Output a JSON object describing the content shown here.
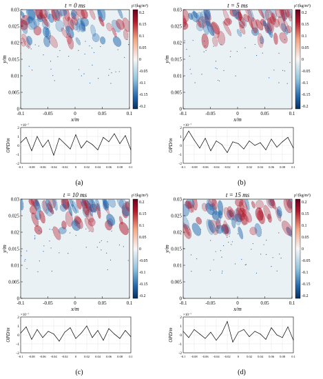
{
  "figure": {
    "panels": [
      {
        "id": "a",
        "letter_label": "(a)",
        "title": "t = 0 ms"
      },
      {
        "id": "b",
        "letter_label": "(b)",
        "title": "t = 5 ms"
      },
      {
        "id": "c",
        "letter_label": "(c)",
        "title": "t = 10 ms"
      },
      {
        "id": "d",
        "letter_label": "(d)",
        "title": "t = 15 ms"
      }
    ],
    "colorbar_label": "ρ'/(kg/m³)",
    "colorbar_ticks": [
      "0.2",
      "0.15",
      "0.1",
      "0.05",
      "0",
      "-0.05",
      "-0.1",
      "-0.15",
      "-0.2"
    ],
    "contour_xlabel": "x/m",
    "contour_ylabel": "y/m",
    "contour_xticks": [
      "-0.1",
      "-0.05",
      "0",
      "0.05",
      "0.1"
    ],
    "contour_yticks": [
      "0.03",
      "0.025",
      "0.02",
      "0.015",
      "0.01",
      "0.005",
      "0"
    ],
    "opd_ylabel": "OPD/m",
    "opd_exponent": "×10⁻⁷",
    "opd_yticks": [
      "2",
      "1",
      "0",
      "-1",
      "-2"
    ],
    "opd_xticks": [
      "-0.1",
      "-0.08",
      "-0.06",
      "-0.04",
      "-0.02",
      "0",
      "0.02",
      "0.04",
      "0.06",
      "0.08",
      "0.1"
    ]
  },
  "colors": {
    "positive": "#b2182b",
    "negative": "#2166ac",
    "background_field": "#e9f1f4",
    "curve": "#000000"
  },
  "chart_data": [
    {
      "type": "line",
      "panel": "a",
      "xlabel": "x/m",
      "ylabel": "OPD/m",
      "xlim": [
        -0.1,
        0.1
      ],
      "ylim": [
        -2,
        2
      ],
      "x": [
        -0.1,
        -0.09,
        -0.08,
        -0.07,
        -0.06,
        -0.05,
        -0.04,
        -0.03,
        -0.02,
        -0.01,
        0,
        0.01,
        0.02,
        0.03,
        0.04,
        0.05,
        0.06,
        0.07,
        0.08,
        0.09,
        0.1
      ],
      "values": [
        0.3,
        0.9,
        -0.6,
        1.0,
        -0.2,
        0.6,
        -1.1,
        0.8,
        0.2,
        -0.4,
        1.2,
        -0.3,
        0.5,
        0.1,
        -0.5,
        0.9,
        0.4,
        1.3,
        0.2,
        1.1,
        -0.5
      ]
    },
    {
      "type": "line",
      "panel": "b",
      "xlabel": "x/m",
      "ylabel": "OPD/m",
      "xlim": [
        -0.1,
        0.1
      ],
      "ylim": [
        -2,
        2
      ],
      "x": [
        -0.1,
        -0.09,
        -0.08,
        -0.07,
        -0.06,
        -0.05,
        -0.04,
        -0.03,
        -0.02,
        -0.01,
        0,
        0.01,
        0.02,
        0.03,
        0.04,
        0.05,
        0.06,
        0.07,
        0.08,
        0.09,
        0.1
      ],
      "values": [
        0.5,
        1.6,
        0.6,
        -0.3,
        0.8,
        -0.6,
        0.5,
        0.1,
        -0.8,
        0.4,
        0.2,
        -0.4,
        0.5,
        0.0,
        0.3,
        -0.5,
        0.7,
        -0.2,
        0.4,
        0.9,
        -0.3
      ]
    },
    {
      "type": "line",
      "panel": "c",
      "xlabel": "x/m",
      "ylabel": "OPD/m",
      "xlim": [
        -0.1,
        0.1
      ],
      "ylim": [
        -2,
        2
      ],
      "x": [
        -0.1,
        -0.09,
        -0.08,
        -0.07,
        -0.06,
        -0.05,
        -0.04,
        -0.03,
        -0.02,
        -0.01,
        0,
        0.01,
        0.02,
        0.03,
        0.04,
        0.05,
        0.06,
        0.07,
        0.08,
        0.09,
        0.1
      ],
      "values": [
        0.2,
        0.9,
        -0.5,
        0.6,
        -0.3,
        0.4,
        0.1,
        -0.7,
        0.3,
        0.8,
        -0.4,
        0.2,
        1.0,
        -0.3,
        0.5,
        -0.6,
        0.7,
        0.1,
        -0.4,
        0.5,
        -0.2
      ]
    },
    {
      "type": "line",
      "panel": "d",
      "xlabel": "x/m",
      "ylabel": "OPD/m",
      "xlim": [
        -0.1,
        0.1
      ],
      "ylim": [
        -2,
        2
      ],
      "x": [
        -0.1,
        -0.09,
        -0.08,
        -0.07,
        -0.06,
        -0.05,
        -0.04,
        -0.03,
        -0.02,
        -0.01,
        0,
        0.01,
        0.02,
        0.03,
        0.04,
        0.05,
        0.06,
        0.07,
        0.08,
        0.09,
        0.1
      ],
      "values": [
        0.4,
        -0.3,
        0.6,
        0.1,
        -0.4,
        0.3,
        -0.6,
        0.2,
        1.5,
        -0.8,
        0.3,
        0.6,
        -0.2,
        0.4,
        0.1,
        -0.5,
        0.8,
        0.0,
        -0.3,
        0.9,
        -0.6
      ]
    }
  ]
}
